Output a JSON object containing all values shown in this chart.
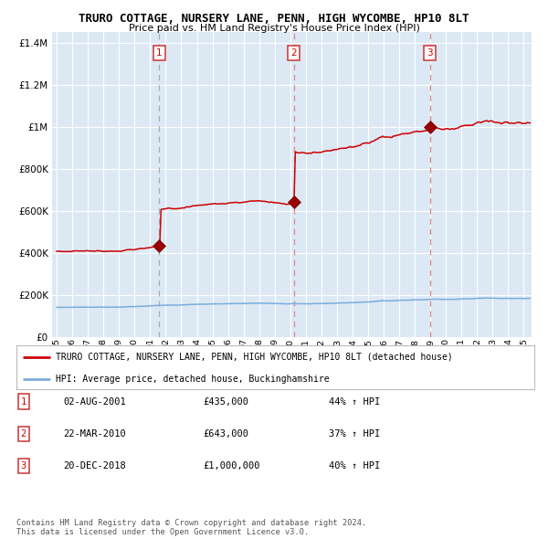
{
  "title": "TRURO COTTAGE, NURSERY LANE, PENN, HIGH WYCOMBE, HP10 8LT",
  "subtitle": "Price paid vs. HM Land Registry's House Price Index (HPI)",
  "ytick_values": [
    0,
    200000,
    400000,
    600000,
    800000,
    1000000,
    1200000,
    1400000
  ],
  "ylim": [
    0,
    1450000
  ],
  "xlim_start": 1994.7,
  "xlim_end": 2025.5,
  "background_color": "#dce9f5",
  "red_line_color": "#cc0000",
  "blue_line_color": "#7aaddb",
  "marker_color": "#990000",
  "sale_markers": [
    {
      "year": 2001.58,
      "price": 435000,
      "label": "1"
    },
    {
      "year": 2010.22,
      "price": 643000,
      "label": "2"
    },
    {
      "year": 2018.97,
      "price": 1000000,
      "label": "3"
    }
  ],
  "vline1_color": "#999999",
  "vline_red_color": "#cc6666",
  "legend_line1": "TRURO COTTAGE, NURSERY LANE, PENN, HIGH WYCOMBE, HP10 8LT (detached house)",
  "legend_line2": "HPI: Average price, detached house, Buckinghamshire",
  "table_rows": [
    {
      "num": "1",
      "date": "02-AUG-2001",
      "price": "£435,000",
      "change": "44% ↑ HPI"
    },
    {
      "num": "2",
      "date": "22-MAR-2010",
      "price": "£643,000",
      "change": "37% ↑ HPI"
    },
    {
      "num": "3",
      "date": "20-DEC-2018",
      "price": "£1,000,000",
      "change": "40% ↑ HPI"
    }
  ],
  "copyright_text": "Contains HM Land Registry data © Crown copyright and database right 2024.\nThis data is licensed under the Open Government Licence v3.0.",
  "xtick_years": [
    1995,
    1996,
    1997,
    1998,
    1999,
    2000,
    2001,
    2002,
    2003,
    2004,
    2005,
    2006,
    2007,
    2008,
    2009,
    2010,
    2011,
    2012,
    2013,
    2014,
    2015,
    2016,
    2017,
    2018,
    2019,
    2020,
    2021,
    2022,
    2023,
    2024,
    2025
  ]
}
